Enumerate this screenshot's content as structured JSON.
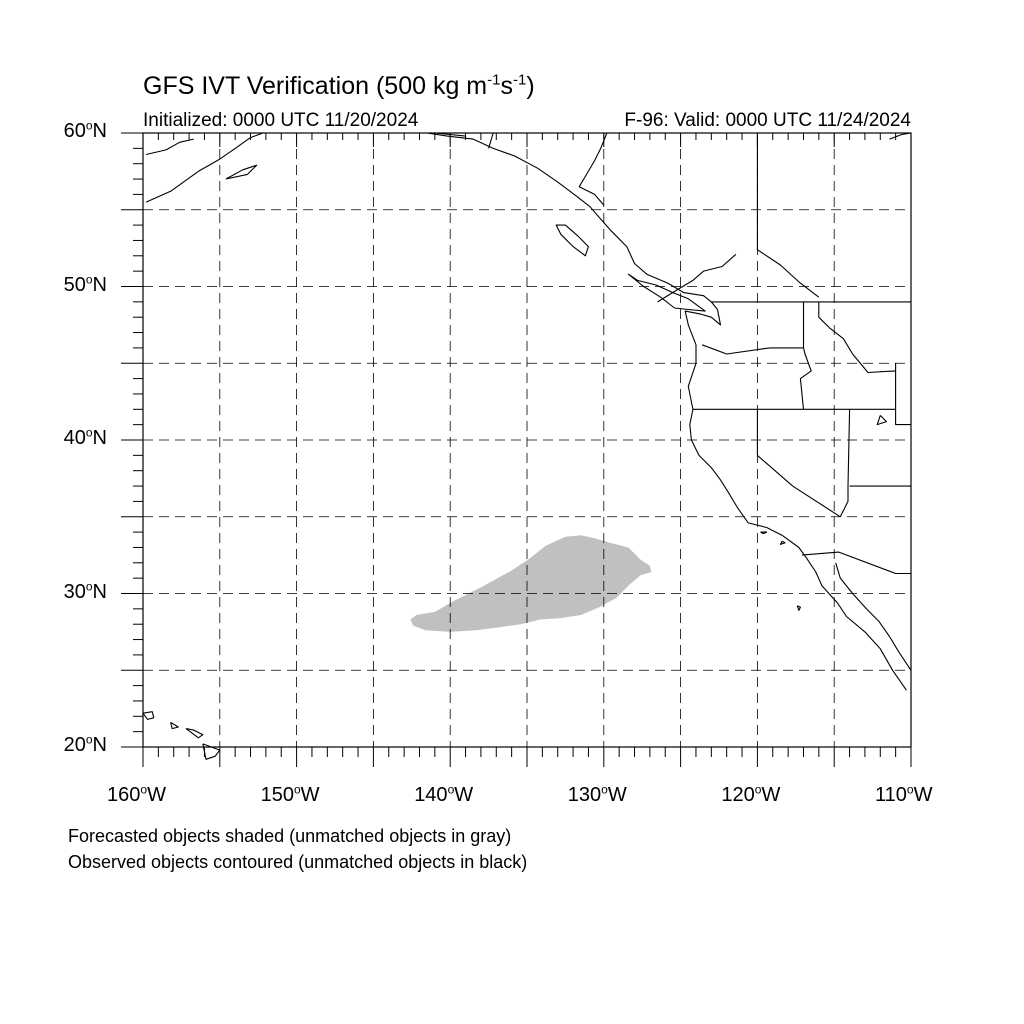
{
  "title": {
    "main": "GFS IVT Verification (500 kg m",
    "sup1": "-1",
    "mid": "s",
    "sup2": "-1",
    "end": ")"
  },
  "initialized": "Initialized: 0000 UTC 11/20/2024",
  "valid": "F-96: Valid: 0000 UTC 11/24/2024",
  "notes": [
    "Forecasted objects shaded (unmatched objects in gray)",
    "Observed objects contoured (unmatched objects in black)"
  ],
  "map": {
    "lon_range": [
      -160,
      -110
    ],
    "lat_range": [
      20,
      60
    ],
    "lat_labels": [
      {
        "lat": 60,
        "num": "60",
        "hemi": "N"
      },
      {
        "lat": 50,
        "num": "50",
        "hemi": "N"
      },
      {
        "lat": 40,
        "num": "40",
        "hemi": "N"
      },
      {
        "lat": 30,
        "num": "30",
        "hemi": "N"
      },
      {
        "lat": 20,
        "num": "20",
        "hemi": "N"
      }
    ],
    "lon_labels": [
      {
        "lon": -160,
        "num": "160",
        "hemi": "W"
      },
      {
        "lon": -150,
        "num": "150",
        "hemi": "W"
      },
      {
        "lon": -140,
        "num": "140",
        "hemi": "W"
      },
      {
        "lon": -130,
        "num": "130",
        "hemi": "W"
      },
      {
        "lon": -120,
        "num": "120",
        "hemi": "W"
      },
      {
        "lon": -110,
        "num": "110",
        "hemi": "W"
      }
    ],
    "grid_spacing_deg": 5,
    "unmatched_forecast_color": "#c0c0c0",
    "forecast_object_polygon": [
      [
        -142.6,
        28.3
      ],
      [
        -142.2,
        28.6
      ],
      [
        -141.0,
        28.8
      ],
      [
        -139.8,
        29.5
      ],
      [
        -138.0,
        30.4
      ],
      [
        -136.0,
        31.5
      ],
      [
        -134.8,
        32.3
      ],
      [
        -133.8,
        33.1
      ],
      [
        -132.5,
        33.7
      ],
      [
        -131.5,
        33.8
      ],
      [
        -130.6,
        33.6
      ],
      [
        -129.6,
        33.3
      ],
      [
        -128.4,
        33.0
      ],
      [
        -127.6,
        32.2
      ],
      [
        -127.0,
        31.8
      ],
      [
        -126.9,
        31.4
      ],
      [
        -127.6,
        31.2
      ],
      [
        -128.3,
        30.6
      ],
      [
        -129.2,
        29.7
      ],
      [
        -130.3,
        29.1
      ],
      [
        -131.5,
        28.6
      ],
      [
        -132.8,
        28.4
      ],
      [
        -134.2,
        28.3
      ],
      [
        -135.4,
        28.0
      ],
      [
        -136.8,
        27.8
      ],
      [
        -138.3,
        27.6
      ],
      [
        -140.0,
        27.5
      ],
      [
        -141.6,
        27.6
      ],
      [
        -142.4,
        27.9
      ]
    ]
  }
}
